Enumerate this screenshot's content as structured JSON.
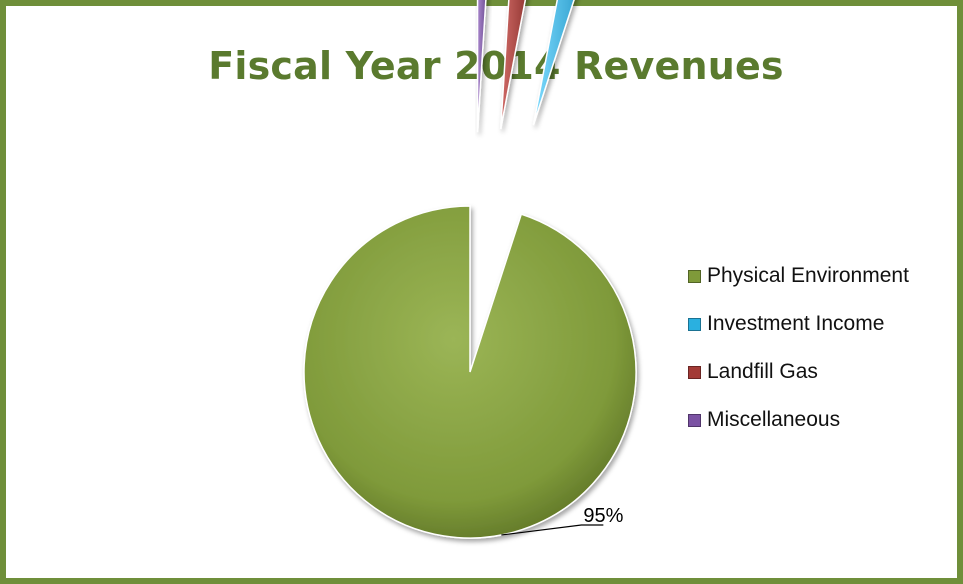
{
  "chart_data": {
    "type": "pie",
    "title": "Fiscal Year 2014 Revenues",
    "slices": [
      {
        "label": "Physical Environment",
        "value": 95,
        "display": "95%",
        "color": "#7f9a3a"
      },
      {
        "label": "Investment Income",
        "value": 2,
        "display": "2%",
        "color": "#2ab0e0"
      },
      {
        "label": "Landfill Gas",
        "value": 2,
        "display": "2%",
        "color": "#a33a36"
      },
      {
        "label": "Miscellaneous",
        "value": 1,
        "display": "1%",
        "color": "#7b52a3"
      }
    ],
    "legend_position": "right",
    "exploded": [
      "Investment Income",
      "Landfill Gas",
      "Miscellaneous"
    ],
    "style": "3d-shaded"
  }
}
